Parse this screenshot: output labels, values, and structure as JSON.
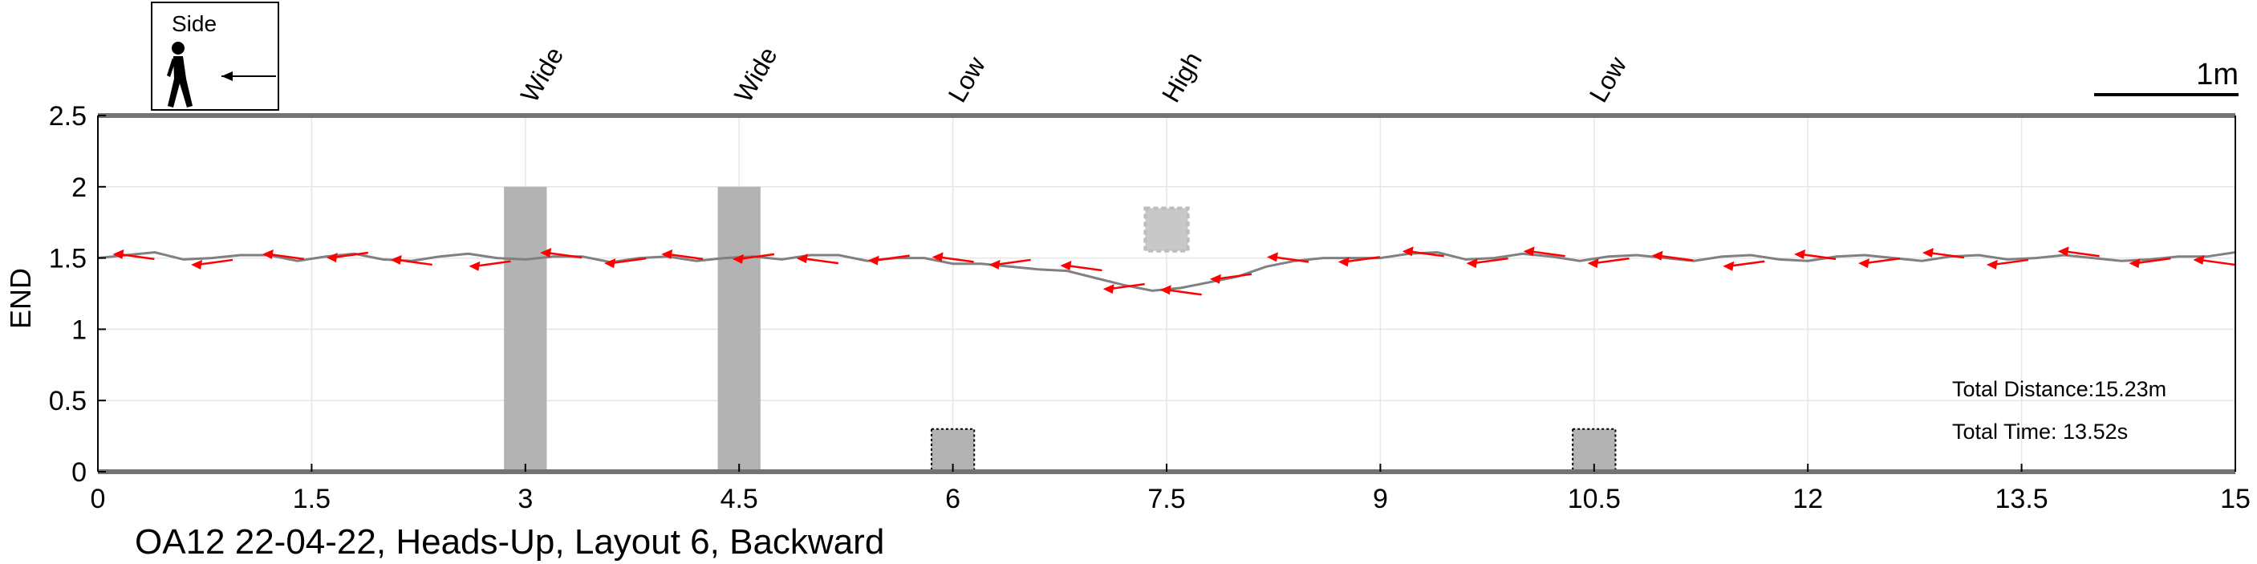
{
  "chart_data": {
    "type": "line",
    "title": "",
    "subtitle": "OA12 22-04-22, Heads-Up, Layout 6, Backward",
    "xlabel": "",
    "ylabel": "END",
    "xlim": [
      0,
      15
    ],
    "ylim": [
      0,
      2.5
    ],
    "xticks": [
      0,
      1.5,
      3,
      4.5,
      6,
      7.5,
      9,
      10.5,
      12,
      13.5,
      15
    ],
    "xtick_labels": [
      "0",
      "1.5",
      "3",
      "4.5",
      "6",
      "7.5",
      "9",
      "10.5",
      "12",
      "13.5",
      "15"
    ],
    "yticks": [
      0,
      0.5,
      1,
      1.5,
      2,
      2.5
    ],
    "ytick_labels": [
      "0",
      "0.5",
      "1",
      "1.5",
      "2",
      "2.5"
    ],
    "grid": true,
    "legend": {
      "label": "Side",
      "icon": "walking-person-icon",
      "direction": "arrow-left-icon",
      "placement": "top-left"
    },
    "scale_bar_label": "1m",
    "obstacles": [
      {
        "type": "Wide",
        "x": [
          2.85,
          3.15
        ],
        "y": [
          0,
          2.0
        ],
        "fill": "#b3b3b3"
      },
      {
        "type": "Wide",
        "x": [
          4.35,
          4.65
        ],
        "y": [
          0,
          2.0
        ],
        "fill": "#b3b3b3"
      },
      {
        "type": "Low",
        "x": [
          5.85,
          6.15
        ],
        "y": [
          0,
          0.3
        ],
        "fill": "#b3b3b3"
      },
      {
        "type": "High",
        "x": [
          7.35,
          7.65
        ],
        "y": [
          1.55,
          1.85
        ],
        "fill": "#c8c8c8"
      },
      {
        "type": "Low",
        "x": [
          10.35,
          10.65
        ],
        "y": [
          0,
          0.3
        ],
        "fill": "#b3b3b3"
      }
    ],
    "obstacle_labels": [
      {
        "text": "Wide",
        "x": 3.0
      },
      {
        "text": "Wide",
        "x": 4.5
      },
      {
        "text": "Low",
        "x": 6.0
      },
      {
        "text": "High",
        "x": 7.5
      },
      {
        "text": "Low",
        "x": 10.5
      }
    ],
    "series": [
      {
        "color": "#808080",
        "x": [
          0.0,
          0.2,
          0.4,
          0.6,
          0.8,
          1.0,
          1.2,
          1.4,
          1.6,
          1.8,
          2.0,
          2.2,
          2.4,
          2.6,
          2.8,
          3.0,
          3.2,
          3.4,
          3.6,
          3.8,
          4.0,
          4.2,
          4.4,
          4.6,
          4.8,
          5.0,
          5.2,
          5.4,
          5.6,
          5.8,
          6.0,
          6.2,
          6.4,
          6.6,
          6.8,
          7.0,
          7.2,
          7.4,
          7.6,
          7.8,
          8.0,
          8.2,
          8.4,
          8.6,
          8.8,
          9.0,
          9.2,
          9.4,
          9.6,
          9.8,
          10.0,
          10.2,
          10.4,
          10.6,
          10.8,
          11.0,
          11.2,
          11.4,
          11.6,
          11.8,
          12.0,
          12.2,
          12.4,
          12.6,
          12.8,
          13.0,
          13.2,
          13.4,
          13.6,
          13.8,
          14.0,
          14.2,
          14.4,
          14.6,
          14.8,
          15.0
        ],
        "y": [
          1.5,
          1.52,
          1.54,
          1.49,
          1.5,
          1.52,
          1.52,
          1.48,
          1.51,
          1.53,
          1.49,
          1.48,
          1.51,
          1.53,
          1.5,
          1.49,
          1.51,
          1.51,
          1.47,
          1.5,
          1.51,
          1.48,
          1.5,
          1.51,
          1.49,
          1.52,
          1.52,
          1.48,
          1.5,
          1.5,
          1.46,
          1.46,
          1.44,
          1.42,
          1.41,
          1.36,
          1.31,
          1.27,
          1.29,
          1.33,
          1.37,
          1.44,
          1.48,
          1.5,
          1.5,
          1.5,
          1.53,
          1.54,
          1.49,
          1.5,
          1.53,
          1.51,
          1.48,
          1.51,
          1.52,
          1.5,
          1.48,
          1.51,
          1.52,
          1.49,
          1.48,
          1.51,
          1.52,
          1.5,
          1.48,
          1.51,
          1.52,
          1.49,
          1.5,
          1.52,
          1.5,
          1.48,
          1.49,
          1.51,
          1.51,
          1.54
        ]
      }
    ],
    "step_arrows": {
      "color": "#ff0000",
      "direction": "left",
      "points": [
        [
          0.25,
          1.51
        ],
        [
          0.8,
          1.47
        ],
        [
          1.3,
          1.51
        ],
        [
          1.75,
          1.52
        ],
        [
          2.2,
          1.47
        ],
        [
          2.75,
          1.46
        ],
        [
          3.25,
          1.52
        ],
        [
          3.7,
          1.48
        ],
        [
          4.1,
          1.51
        ],
        [
          4.6,
          1.51
        ],
        [
          5.05,
          1.48
        ],
        [
          5.55,
          1.5
        ],
        [
          6.0,
          1.49
        ],
        [
          6.4,
          1.47
        ],
        [
          6.9,
          1.43
        ],
        [
          7.2,
          1.3
        ],
        [
          7.6,
          1.26
        ],
        [
          7.95,
          1.37
        ],
        [
          8.35,
          1.49
        ],
        [
          8.85,
          1.49
        ],
        [
          9.3,
          1.53
        ],
        [
          9.75,
          1.48
        ],
        [
          10.15,
          1.53
        ],
        [
          10.6,
          1.48
        ],
        [
          11.05,
          1.5
        ],
        [
          11.55,
          1.46
        ],
        [
          12.05,
          1.51
        ],
        [
          12.5,
          1.48
        ],
        [
          12.95,
          1.52
        ],
        [
          13.4,
          1.47
        ],
        [
          13.9,
          1.53
        ],
        [
          14.4,
          1.48
        ],
        [
          14.85,
          1.47
        ]
      ]
    },
    "annotations": [
      {
        "text": "Total Distance:15.23m"
      },
      {
        "text": "Total Time: 13.52s"
      }
    ]
  }
}
